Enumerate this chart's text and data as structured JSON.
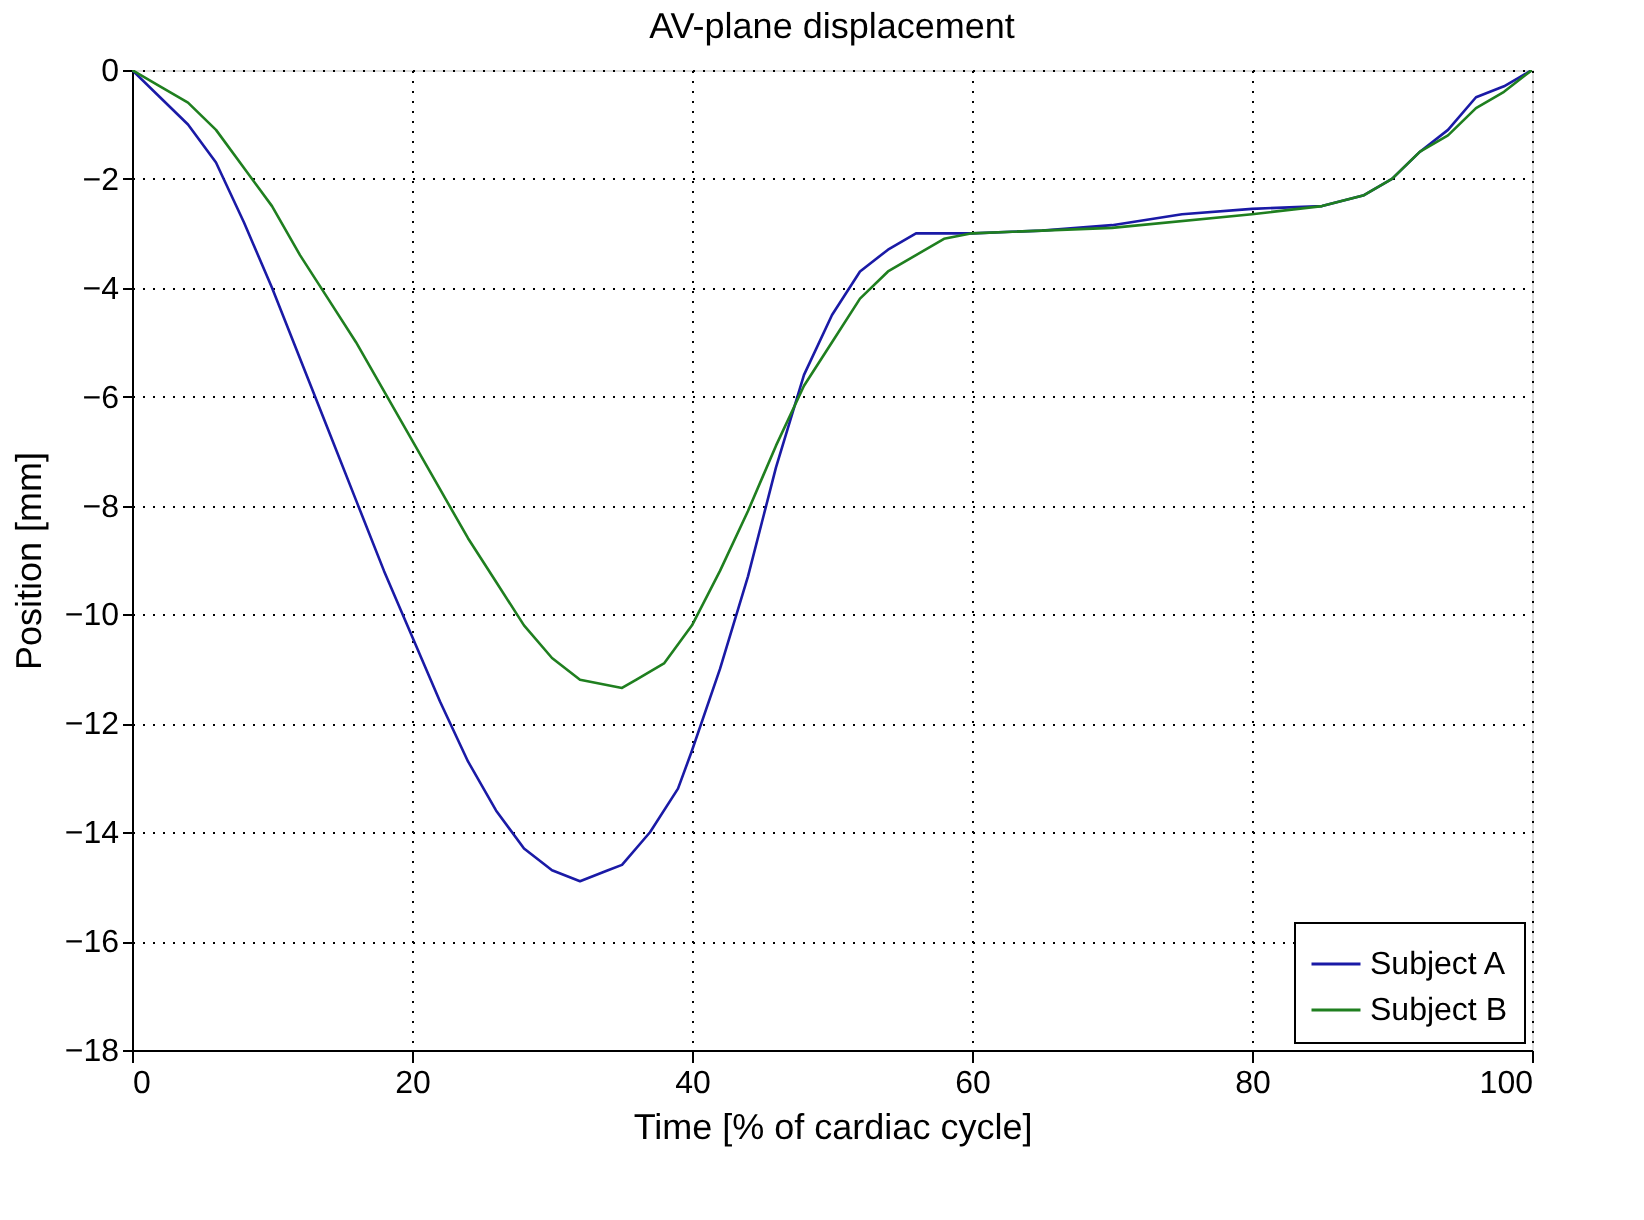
{
  "chart_data": {
    "type": "line",
    "title": "AV-plane displacement",
    "xlabel": "Time [% of cardiac cycle]",
    "ylabel": "Position [mm]",
    "xlim": [
      0,
      100
    ],
    "xticks": [
      0,
      20,
      40,
      60,
      80,
      100
    ],
    "ylim": [
      -18,
      0
    ],
    "yticks": [
      -18,
      -16,
      -14,
      -12,
      -10,
      -8,
      -6,
      -4,
      -2,
      0
    ],
    "grid": true,
    "legend": "bottom right",
    "marker": "none",
    "line_style": "solid",
    "series": [
      {
        "name": "Subject A",
        "color": "#1a1aa6",
        "x": [
          0,
          2,
          4,
          6,
          8,
          10,
          12,
          14,
          16,
          18,
          20,
          22,
          24,
          26,
          28,
          30,
          32,
          34,
          35,
          37,
          39,
          40,
          42,
          44,
          46,
          48,
          50,
          52,
          54,
          56,
          60,
          65,
          70,
          75,
          80,
          85,
          88,
          90,
          92,
          94,
          96,
          98,
          100
        ],
        "values": [
          0,
          -0.5,
          -1,
          -1.7,
          -2.8,
          -4,
          -5.3,
          -6.6,
          -7.9,
          -9.2,
          -10.4,
          -11.6,
          -12.7,
          -13.6,
          -14.3,
          -14.7,
          -14.9,
          -14.7,
          -14.6,
          -14.0,
          -13.2,
          -12.5,
          -11.0,
          -9.3,
          -7.3,
          -5.6,
          -4.5,
          -3.7,
          -3.3,
          -3.0,
          -3.0,
          -2.95,
          -2.85,
          -2.65,
          -2.55,
          -2.5,
          -2.3,
          -2.0,
          -1.5,
          -1.1,
          -0.5,
          -0.3,
          0
        ]
      },
      {
        "name": "Subject B",
        "color": "#1f7f1f",
        "x": [
          0,
          2,
          4,
          6,
          8,
          10,
          12,
          14,
          16,
          18,
          20,
          22,
          24,
          26,
          28,
          30,
          32,
          34,
          35,
          36,
          38,
          40,
          42,
          44,
          46,
          48,
          50,
          52,
          54,
          56,
          58,
          60,
          70,
          80,
          85,
          88,
          90,
          92,
          94,
          96,
          98,
          100
        ],
        "values": [
          0,
          -0.3,
          -0.6,
          -1.1,
          -1.8,
          -2.5,
          -3.4,
          -4.2,
          -5.0,
          -5.9,
          -6.8,
          -7.7,
          -8.6,
          -9.4,
          -10.2,
          -10.8,
          -11.2,
          -11.3,
          -11.35,
          -11.2,
          -10.9,
          -10.2,
          -9.2,
          -8.1,
          -6.9,
          -5.8,
          -5.0,
          -4.2,
          -3.7,
          -3.4,
          -3.1,
          -3.0,
          -2.9,
          -2.65,
          -2.5,
          -2.3,
          -2.0,
          -1.5,
          -1.2,
          -0.7,
          -0.4,
          0
        ]
      }
    ]
  }
}
